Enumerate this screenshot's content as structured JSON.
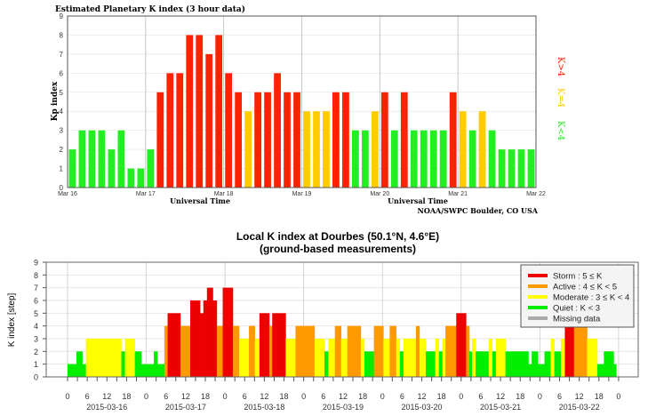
{
  "chart_data": [
    {
      "type": "bar",
      "title": "Estimated Planetary K index (3 hour data)",
      "xlabel": "Universal Time",
      "ylabel": "Kp index",
      "ylim": [
        0,
        9
      ],
      "yticks": [
        "0",
        "1",
        "2",
        "3",
        "4",
        "5",
        "6",
        "7",
        "8",
        "9"
      ],
      "xticks": [
        "Mar 16",
        "Mar 17",
        "Mar 18",
        "Mar 19",
        "Mar 20",
        "Mar 21",
        "Mar 22"
      ],
      "interval_hours": 3,
      "values": [
        2,
        3,
        3,
        3,
        2,
        3,
        1,
        1,
        2,
        5,
        6,
        6,
        8,
        8,
        7,
        8,
        6,
        5,
        4,
        5,
        5,
        6,
        5,
        5,
        4,
        4,
        4,
        5,
        5,
        3,
        3,
        4,
        5,
        3,
        5,
        3,
        3,
        3,
        3,
        5,
        4,
        3,
        4,
        3,
        2,
        2,
        2,
        2
      ],
      "legend": [
        {
          "label": "K>4",
          "color": "#ff2200"
        },
        {
          "label": "K=4",
          "color": "#ffcc00"
        },
        {
          "label": "K<4",
          "color": "#22ee22"
        }
      ],
      "credit": "NOAA/SWPC Boulder, CO USA",
      "grid": true
    },
    {
      "type": "bar",
      "title": "Local K index at Dourbes (50.1°N, 4.6°E)",
      "subtitle": "(ground-based measurements)",
      "ylabel": "K index [step]",
      "ylim": [
        0,
        9
      ],
      "yticks": [
        "0",
        "1",
        "2",
        "3",
        "4",
        "5",
        "6",
        "7",
        "8",
        "9"
      ],
      "hour_tick_labels": [
        "0",
        "6",
        "12",
        "18"
      ],
      "dates": [
        "2015-03-16",
        "2015-03-17",
        "2015-03-18",
        "2015-03-19",
        "2015-03-20",
        "2015-03-21",
        "2015-03-22"
      ],
      "final_tick_label": "0",
      "segments_hours_from_2015-03-16": [
        [
          0,
          2.7,
          1
        ],
        [
          2.7,
          4.5,
          2
        ],
        [
          4.5,
          5.6,
          1
        ],
        [
          5.6,
          16.4,
          3
        ],
        [
          16.4,
          17.5,
          2
        ],
        [
          17.5,
          20.5,
          3
        ],
        [
          20.5,
          22.5,
          2
        ],
        [
          22.5,
          26.3,
          1
        ],
        [
          26.3,
          27.4,
          2
        ],
        [
          27.4,
          29.5,
          1
        ],
        [
          29.5,
          30.5,
          4
        ],
        [
          30.5,
          34.4,
          5
        ],
        [
          34.4,
          37.4,
          4
        ],
        [
          37.4,
          40.4,
          6
        ],
        [
          40.4,
          41.4,
          5
        ],
        [
          41.4,
          42.5,
          6
        ],
        [
          42.5,
          44.3,
          7
        ],
        [
          44.3,
          45.5,
          6
        ],
        [
          45.5,
          47.3,
          4
        ],
        [
          47.3,
          50.4,
          7
        ],
        [
          50.4,
          52.3,
          4
        ],
        [
          52.3,
          55.3,
          3
        ],
        [
          55.3,
          57.1,
          4
        ],
        [
          57.1,
          58.5,
          3
        ],
        [
          58.5,
          61.5,
          5
        ],
        [
          61.5,
          62.4,
          4
        ],
        [
          62.4,
          66.5,
          5
        ],
        [
          66.5,
          69.5,
          3
        ],
        [
          69.5,
          75.3,
          4
        ],
        [
          75.3,
          78.3,
          3
        ],
        [
          78.3,
          79.5,
          2
        ],
        [
          79.5,
          81.5,
          3
        ],
        [
          81.5,
          83.4,
          4
        ],
        [
          83.4,
          85.3,
          3
        ],
        [
          85.3,
          89.4,
          4
        ],
        [
          89.4,
          90.5,
          3
        ],
        [
          90.5,
          93.4,
          2
        ],
        [
          93.4,
          96.3,
          4
        ],
        [
          96.3,
          98.2,
          3
        ],
        [
          98.2,
          100.2,
          4
        ],
        [
          100.2,
          101.3,
          3
        ],
        [
          101.3,
          102.4,
          2
        ],
        [
          102.4,
          106.2,
          3
        ],
        [
          106.2,
          107.3,
          4
        ],
        [
          107.3,
          109.2,
          3
        ],
        [
          109.2,
          112.1,
          2
        ],
        [
          112.1,
          113.2,
          3
        ],
        [
          113.2,
          114.3,
          2
        ],
        [
          114.3,
          115.2,
          3
        ],
        [
          115.2,
          118.5,
          4
        ],
        [
          118.5,
          121.5,
          5
        ],
        [
          121.5,
          122.5,
          4
        ],
        [
          122.5,
          123.3,
          2
        ],
        [
          123.3,
          124.4,
          3
        ],
        [
          124.4,
          128.4,
          2
        ],
        [
          128.4,
          129.5,
          3
        ],
        [
          129.5,
          130.6,
          2
        ],
        [
          130.6,
          133.5,
          3
        ],
        [
          133.5,
          140.5,
          2
        ],
        [
          140.5,
          141.5,
          1
        ],
        [
          141.5,
          143.4,
          2
        ],
        [
          143.4,
          145.4,
          1
        ],
        [
          145.4,
          147.3,
          2
        ],
        [
          147.3,
          148.4,
          3
        ],
        [
          148.4,
          150.4,
          2
        ],
        [
          150.4,
          151.6,
          3
        ],
        [
          151.6,
          154.4,
          5
        ],
        [
          154.4,
          158.4,
          4
        ],
        [
          158.4,
          161.5,
          3
        ],
        [
          161.5,
          163.5,
          1
        ],
        [
          163.5,
          166.5,
          2
        ],
        [
          166.5,
          167.3,
          1
        ]
      ],
      "legend": [
        {
          "label": "Storm : 5 ≤ K",
          "color": "#ee0000"
        },
        {
          "label": "Active : 4 ≤ K < 5",
          "color": "#ff9900"
        },
        {
          "label": "Moderate : 3 ≤ K < 4",
          "color": "#ffff00"
        },
        {
          "label": "Quiet : K < 3",
          "color": "#00ee00"
        },
        {
          "label": "Missing data",
          "color": "#aaaaaa"
        }
      ],
      "legend_position": "top-right",
      "grid": true
    }
  ]
}
